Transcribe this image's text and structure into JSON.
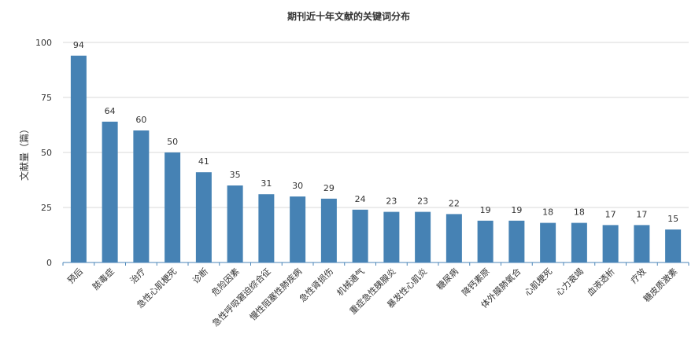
{
  "chart_data": {
    "type": "bar",
    "title": "期刊近十年文献的关键词分布",
    "ylabel": "文献量（篇）",
    "xlabel": "",
    "ylim": [
      0,
      100
    ],
    "yticks": [
      0,
      25,
      50,
      75,
      100
    ],
    "grid": true,
    "bar_color": "#4682b4",
    "categories": [
      "预后",
      "脓毒症",
      "治疗",
      "急性心肌梗死",
      "诊断",
      "危险因素",
      "急性呼吸窘迫综合征",
      "慢性阻塞性肺疾病",
      "急性肾损伤",
      "机械通气",
      "重症急性胰腺炎",
      "暴发性心肌炎",
      "糖尿病",
      "降钙素原",
      "体外膜肺氧合",
      "心肌梗死",
      "心力衰竭",
      "血液透析",
      "疗效",
      "糖皮质激素"
    ],
    "values": [
      94,
      64,
      60,
      50,
      41,
      35,
      31,
      30,
      29,
      24,
      23,
      23,
      22,
      19,
      19,
      18,
      18,
      17,
      17,
      15
    ]
  }
}
